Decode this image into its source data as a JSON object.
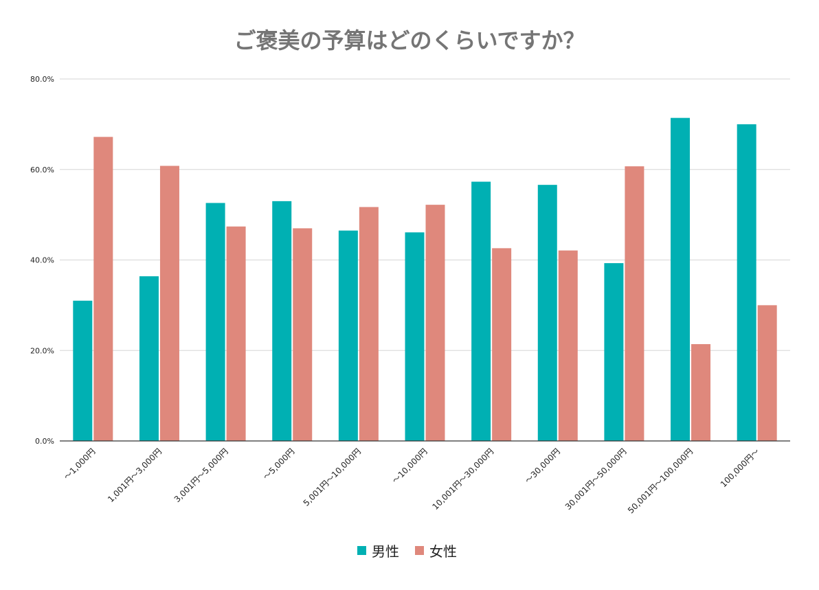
{
  "chart_data": {
    "type": "bar",
    "title": "ご褒美の予算はどのくらいですか？",
    "xlabel": "",
    "ylabel": "",
    "ylim": [
      0,
      80
    ],
    "y_ticks": [
      "0.0%",
      "20.0%",
      "40.0%",
      "60.0%",
      "80.0%"
    ],
    "y_tick_values": [
      0,
      20,
      40,
      60,
      80
    ],
    "grid": true,
    "legend_position": "bottom-center",
    "categories": [
      "〜1,000円",
      "1,001円〜3,000円",
      "3,001円〜5,000円",
      "〜5,000円",
      "5,001円〜10,000円",
      "〜10,000円",
      "10,001円〜30,000円",
      "〜30,000円",
      "30,001円〜50,000円",
      "50,001円〜100,000円",
      "100,000円〜"
    ],
    "series": [
      {
        "name": "男性",
        "color": "#00b0b3",
        "values": [
          31.0,
          36.4,
          52.6,
          53.0,
          46.5,
          46.1,
          57.3,
          56.6,
          39.3,
          71.4,
          70.0
        ]
      },
      {
        "name": "女性",
        "color": "#df887c",
        "values": [
          67.2,
          60.8,
          47.4,
          47.0,
          51.7,
          52.2,
          42.6,
          42.1,
          60.7,
          21.4,
          30.0
        ]
      }
    ]
  }
}
